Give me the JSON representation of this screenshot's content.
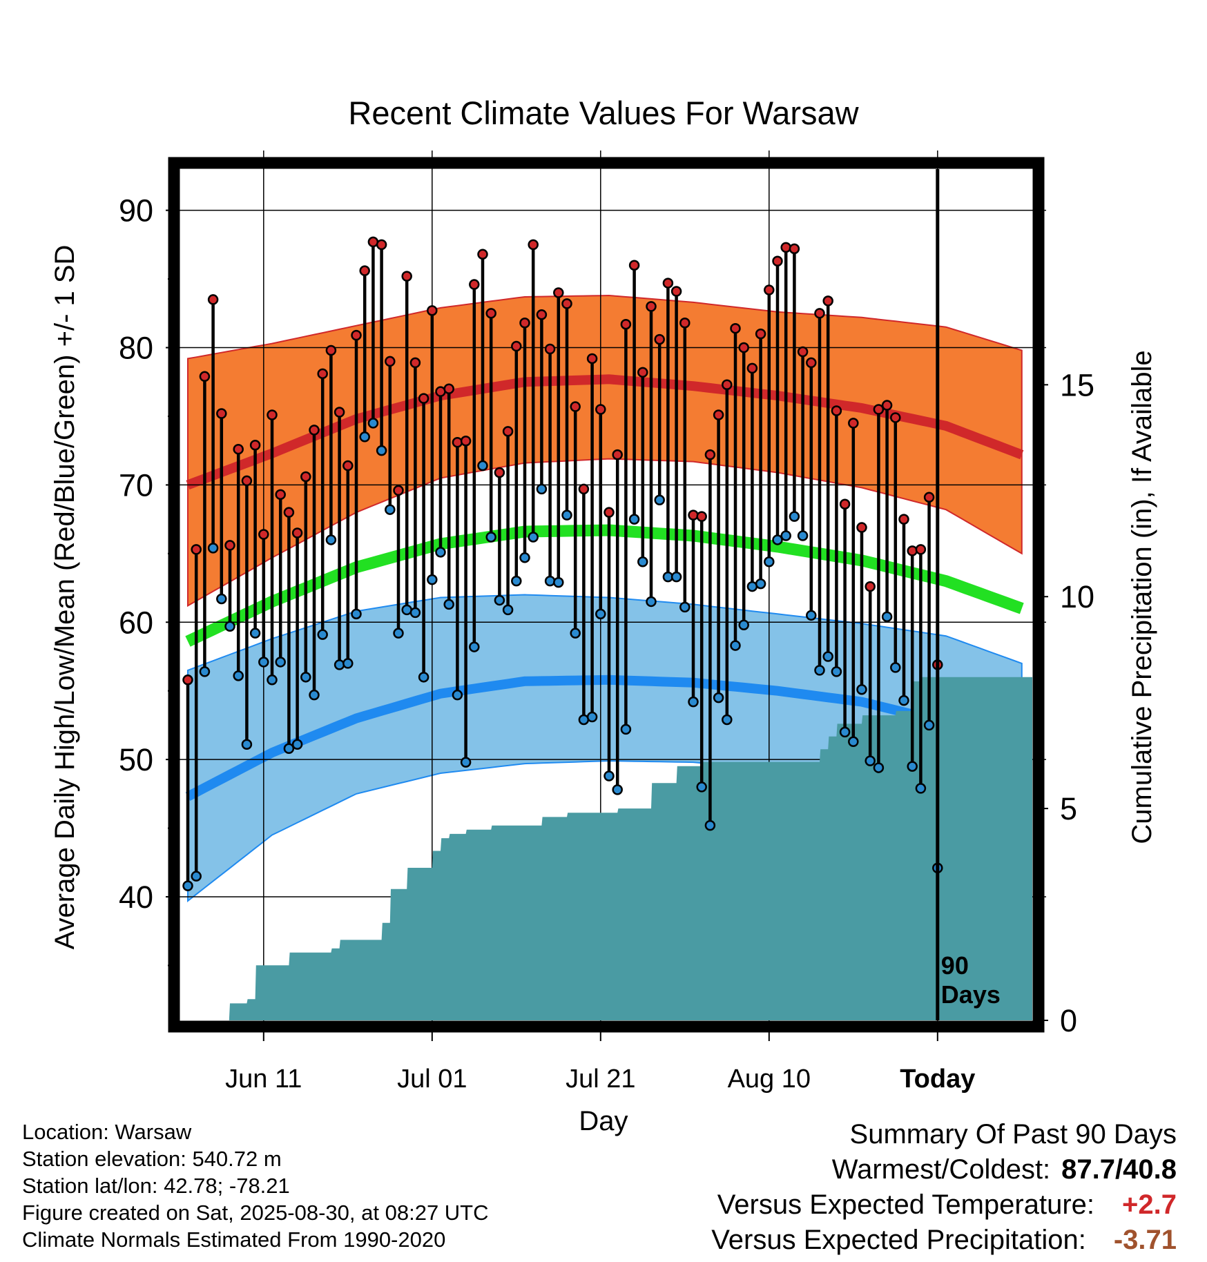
{
  "title": "Recent Climate Values For Warsaw",
  "chart_data": {
    "type": "line",
    "title": "Recent Climate Values For Warsaw",
    "xlabel": "Day",
    "ylabel": "Average Daily High/Low/Mean (Red/Blue/Green) +/- 1 SD",
    "y2label": "Cumulative Precipitation (in), If Available",
    "ylim": [
      31,
      93
    ],
    "y2lim": [
      0,
      20
    ],
    "yticks": [
      "40",
      "50",
      "60",
      "70",
      "80",
      "90"
    ],
    "y2ticks": [
      "0",
      "5",
      "10",
      "15"
    ],
    "xticks": [
      "Jun 11",
      "Jul 01",
      "Jul 21",
      "Aug 10",
      "Today"
    ],
    "grid": true,
    "today_marker": "90\nDays",
    "colors": {
      "high_mean": "#d0282a",
      "high_band": "#f47c32",
      "low_mean": "#1f8af0",
      "low_band": "#84c2e8",
      "mean": "#22e022",
      "precip": "#4a9ba3",
      "high_point": "#d0282a",
      "low_point": "#2a8ad0"
    },
    "normals": {
      "days": [
        0,
        10,
        20,
        30,
        40,
        50,
        60,
        70,
        80,
        90,
        99
      ],
      "high_mean": [
        70.0,
        72.3,
        74.8,
        76.5,
        77.5,
        77.7,
        77.2,
        76.5,
        75.6,
        74.3,
        72.2
      ],
      "high_plus_sd": [
        79.2,
        80.3,
        81.6,
        82.9,
        83.7,
        83.8,
        83.3,
        82.6,
        82.2,
        81.5,
        79.8
      ],
      "high_minus_sd": [
        61.2,
        64.7,
        68.0,
        70.5,
        71.6,
        71.9,
        71.7,
        70.9,
        69.8,
        68.2,
        65.0
      ],
      "low_mean": [
        47.3,
        50.5,
        53.0,
        54.8,
        55.7,
        55.8,
        55.6,
        55.0,
        54.2,
        52.7,
        49.7
      ],
      "low_plus_sd": [
        56.5,
        58.8,
        60.8,
        61.8,
        62.0,
        61.8,
        61.3,
        60.6,
        59.9,
        59.0,
        57.0
      ],
      "low_minus_sd": [
        39.7,
        44.5,
        47.5,
        49.0,
        49.7,
        49.9,
        49.8,
        49.2,
        48.0,
        46.0,
        42.9
      ],
      "mean": [
        58.6,
        61.5,
        64.0,
        65.7,
        66.6,
        66.7,
        66.3,
        65.5,
        64.5,
        63.0,
        61.0
      ]
    },
    "highs": [
      55.8,
      65.3,
      77.9,
      83.5,
      75.2,
      65.6,
      72.6,
      70.3,
      72.9,
      66.4,
      75.1,
      69.3,
      68.0,
      66.5,
      70.6,
      74.0,
      78.1,
      79.8,
      75.3,
      71.4,
      80.9,
      85.6,
      87.7,
      87.5,
      79.0,
      69.6,
      85.2,
      78.9,
      76.3,
      82.7,
      76.8,
      77.0,
      73.1,
      73.2,
      84.6,
      86.8,
      82.5,
      70.9,
      73.9,
      80.1,
      81.8,
      87.5,
      82.4,
      79.9,
      84.0,
      83.2,
      75.7,
      69.7,
      79.2,
      75.5,
      68.0,
      72.2,
      81.7,
      86.0,
      78.2,
      83.0,
      80.6,
      84.7,
      84.1,
      81.8,
      67.8,
      67.7,
      72.2,
      75.1,
      77.3,
      81.4,
      80.0,
      78.5,
      81.0,
      84.2,
      86.3,
      87.3,
      87.2,
      79.7,
      78.9,
      82.5,
      83.4,
      75.4,
      68.6,
      74.5,
      66.9,
      62.6,
      75.5,
      75.8,
      74.9,
      67.5,
      65.2,
      65.3,
      69.1,
      56.9
    ],
    "lows": [
      40.8,
      41.5,
      56.4,
      65.4,
      61.7,
      59.7,
      56.1,
      51.1,
      59.2,
      57.1,
      55.8,
      57.1,
      50.8,
      51.1,
      56.0,
      54.7,
      59.1,
      66.0,
      56.9,
      57.0,
      60.6,
      73.5,
      74.5,
      72.5,
      68.2,
      59.2,
      60.9,
      60.7,
      56.0,
      63.1,
      65.1,
      61.3,
      54.7,
      49.8,
      58.2,
      71.4,
      66.2,
      61.6,
      60.9,
      63.0,
      64.7,
      66.2,
      69.7,
      63.0,
      62.9,
      67.8,
      59.2,
      52.9,
      53.1,
      60.6,
      48.8,
      47.8,
      52.2,
      67.5,
      64.4,
      61.5,
      68.9,
      63.3,
      63.3,
      61.1,
      54.2,
      48.0,
      45.2,
      54.5,
      52.9,
      58.3,
      59.8,
      62.6,
      62.8,
      64.4,
      66.0,
      66.3,
      67.7,
      66.3,
      60.5,
      56.5,
      57.5,
      56.4,
      52.0,
      51.3,
      55.1,
      49.9,
      49.4,
      60.4,
      56.7,
      54.3,
      49.5,
      47.9,
      52.5,
      42.1
    ],
    "precip_cumulative": {
      "days": [
        0,
        4.9,
        5.0,
        7.0,
        7.1,
        8.0,
        8.1,
        12.0,
        12.1,
        17.0,
        17.1,
        18.0,
        18.1,
        23.0,
        23.1,
        24.0,
        24.1,
        26.0,
        26.1,
        29.0,
        29.1,
        30.0,
        30.1,
        31.0,
        31.1,
        33.0,
        33.1,
        36.0,
        36.1,
        42.0,
        42.1,
        45.0,
        45.1,
        51.0,
        51.1,
        55.0,
        55.1,
        58.0,
        58.1,
        61.0,
        61.1,
        75.0,
        75.1,
        76.0,
        76.1,
        77.0,
        77.1,
        80.0,
        80.1,
        84.0,
        84.1,
        86.0,
        86.1,
        87.0,
        87.1,
        99.0
      ],
      "values": [
        0,
        0,
        0.4,
        0.4,
        0.5,
        0.5,
        1.3,
        1.3,
        1.6,
        1.6,
        1.7,
        1.7,
        1.9,
        1.9,
        2.3,
        2.3,
        3.1,
        3.1,
        3.6,
        3.6,
        4.0,
        4.0,
        4.3,
        4.3,
        4.4,
        4.4,
        4.5,
        4.5,
        4.6,
        4.6,
        4.8,
        4.8,
        4.9,
        4.9,
        5.0,
        5.0,
        5.6,
        5.6,
        6.0,
        6.0,
        6.1,
        6.1,
        6.4,
        6.4,
        6.7,
        6.7,
        7.0,
        7.0,
        7.2,
        7.2,
        7.3,
        7.3,
        8.0,
        8.0,
        8.1,
        8.1
      ]
    }
  },
  "info": {
    "location": "Location: Warsaw",
    "elevation": "Station elevation: 540.72 m",
    "latlon": "Station lat/lon: 42.78; -78.21",
    "created": "Figure created on Sat, 2025-08-30, at 08:27 UTC",
    "normals": "Climate Normals Estimated From 1990-2020"
  },
  "summary": {
    "heading": "Summary Of Past 90 Days",
    "warmest_label": "Warmest/Coldest:",
    "warmest_value": "87.7/40.8",
    "temp_label": "Versus Expected Temperature:",
    "temp_value": "+2.7",
    "precip_label": "Versus Expected Precipitation:",
    "precip_value": "-3.71"
  }
}
